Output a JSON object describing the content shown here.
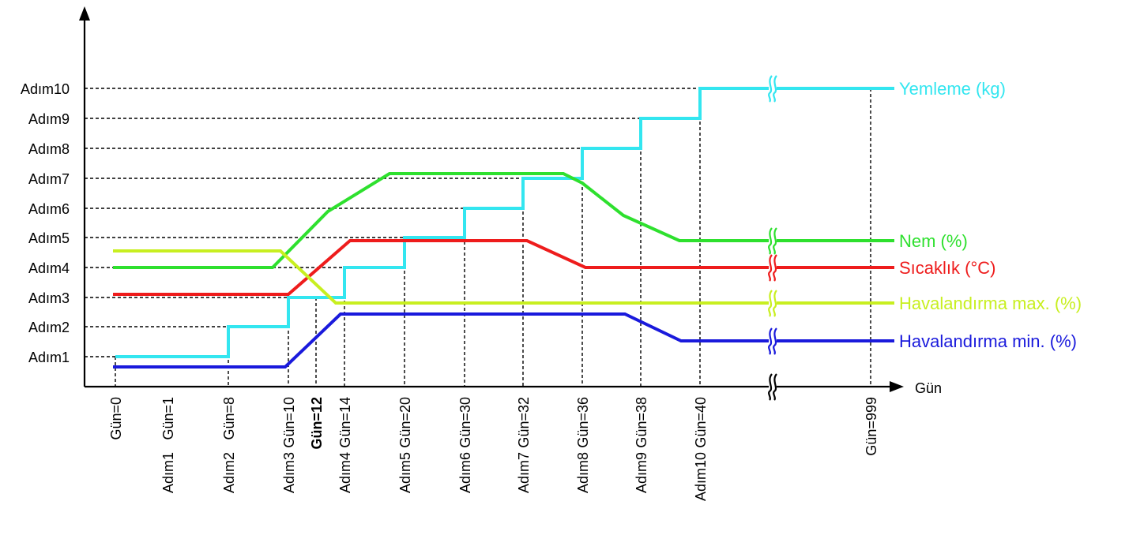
{
  "x_axis_label": "Gün",
  "y_ticks": [
    "Adım1",
    "Adım2",
    "Adım3",
    "Adım4",
    "Adım5",
    "Adım6",
    "Adım7",
    "Adım8",
    "Adım9",
    "Adım10"
  ],
  "x_ticks": [
    {
      "label": "Gün=0",
      "step": "",
      "bold": false
    },
    {
      "label": "Gün=1",
      "step": "Adım1",
      "bold": false
    },
    {
      "label": "Gün=8",
      "step": "Adım2",
      "bold": false
    },
    {
      "label": "Gün=10",
      "step": "Adım3",
      "bold": false
    },
    {
      "label": "Gün=12",
      "step": "",
      "bold": true
    },
    {
      "label": "Gün=14",
      "step": "Adım4",
      "bold": false
    },
    {
      "label": "Gün=20",
      "step": "Adım5",
      "bold": false
    },
    {
      "label": "Gün=30",
      "step": "Adım6",
      "bold": false
    },
    {
      "label": "Gün=32",
      "step": "Adım7",
      "bold": false
    },
    {
      "label": "Gün=36",
      "step": "Adım8",
      "bold": false
    },
    {
      "label": "Gün=38",
      "step": "Adım9",
      "bold": false
    },
    {
      "label": "Gün=40",
      "step": "Adım10",
      "bold": false
    },
    {
      "label": "Gün=999",
      "step": "",
      "bold": false
    }
  ],
  "series": [
    {
      "id": "yemleme",
      "name": "Yemleme (kg)",
      "color": "#33e6f0",
      "step": true,
      "points": [
        [
          "Gün=0",
          "Adım1"
        ],
        [
          "Gün=8",
          "Adım2"
        ],
        [
          "Gün=10",
          "Adım3"
        ],
        [
          "Gün=14",
          "Adım4"
        ],
        [
          "Gün=20",
          "Adım5"
        ],
        [
          "Gün=30",
          "Adım6"
        ],
        [
          "Gün=32",
          "Adım7"
        ],
        [
          "Gün=36",
          "Adım8"
        ],
        [
          "Gün=38",
          "Adım9"
        ],
        [
          "Gün=40",
          "Adım10"
        ],
        [
          "Gün=999",
          "Adım10"
        ]
      ]
    },
    {
      "id": "nem",
      "name": "Nem  (%)",
      "color": "#2ee02e",
      "step": false,
      "levels": [
        "Adım4",
        "Adım7",
        "Adım5 ↑"
      ]
    },
    {
      "id": "sicaklik",
      "name": "Sıcaklık (°C)",
      "color": "#ee1c1c",
      "step": false,
      "levels": [
        "Adım3",
        "Adım5",
        "Adım4"
      ]
    },
    {
      "id": "hav_max",
      "name": "Havalandırma max. (%)",
      "color": "#c8ef20",
      "step": false,
      "levels": [
        "Adım4 ↑",
        "Adım3 ↓"
      ]
    },
    {
      "id": "hav_min",
      "name": "Havalandırma min. (%)",
      "color": "#1a1adc",
      "step": false,
      "levels": [
        "Adım1 ↓",
        "Adım3 ↑",
        "Adım1 ↑"
      ]
    }
  ]
}
